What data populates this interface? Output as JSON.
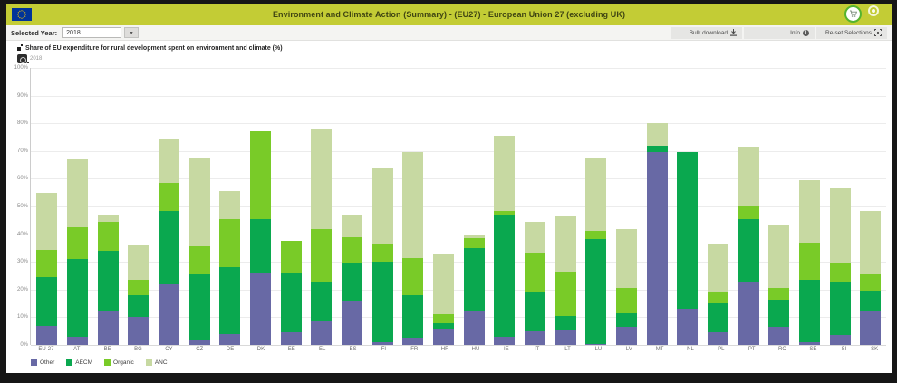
{
  "header": {
    "title": "Environment and Climate Action (Summary) - (EU27) - European Union 27 (excluding UK)",
    "accent_color": "#c3cc35"
  },
  "toolbar": {
    "selected_year_label": "Selected Year:",
    "selected_year_value": "2018",
    "buttons": [
      {
        "label": "Bulk download",
        "icon": "download-icon"
      },
      {
        "label": "Info",
        "icon": "info-icon"
      },
      {
        "label": "Re-set Selections",
        "icon": "reset-selection-icon"
      }
    ]
  },
  "chart": {
    "title": "Share of EU expenditure for rural development spent on environment and climate (%)",
    "snapshot_year": "2018"
  },
  "chart_data": {
    "type": "bar",
    "stacked": true,
    "title": "Share of EU expenditure for rural development spent on environment and climate (%)",
    "xlabel": "",
    "ylabel": "",
    "ylim": [
      0,
      100
    ],
    "ytick_step": 10,
    "ytick_suffix": "%",
    "grid": true,
    "legend_position": "bottom",
    "categories": [
      "EU-27",
      "AT",
      "BE",
      "BG",
      "CY",
      "CZ",
      "DE",
      "DK",
      "EE",
      "EL",
      "ES",
      "FI",
      "FR",
      "HR",
      "HU",
      "IE",
      "IT",
      "LT",
      "LU",
      "LV",
      "MT",
      "NL",
      "PL",
      "PT",
      "RO",
      "SE",
      "SI",
      "SK"
    ],
    "series": [
      {
        "name": "Other",
        "color": "#6869a5",
        "values": [
          7,
          3,
          12.5,
          10,
          22,
          2,
          4,
          26,
          4.5,
          9,
          16,
          1,
          2.5,
          6,
          12,
          3,
          5,
          5.5,
          0.3,
          6.5,
          69.5,
          13,
          4.5,
          23,
          6.5,
          1,
          3.5,
          12.5
        ]
      },
      {
        "name": "AECM",
        "color": "#0aa84f",
        "values": [
          17.5,
          28,
          21.5,
          8,
          26.5,
          23.5,
          24,
          19.5,
          21.5,
          13.5,
          13.5,
          29,
          15.5,
          2,
          23,
          44,
          14,
          5,
          38,
          5,
          2.5,
          56.5,
          10.5,
          22.5,
          10,
          22.5,
          19.5,
          7
        ]
      },
      {
        "name": "Organic",
        "color": "#79cb28",
        "values": [
          10,
          11.5,
          10.5,
          5.5,
          10,
          10,
          17.5,
          31.5,
          11.5,
          19.5,
          9.5,
          6.5,
          13.5,
          3,
          3.5,
          1.5,
          14.5,
          16,
          3,
          9,
          0,
          0,
          4,
          4.5,
          4,
          13.5,
          6.5,
          6
        ]
      },
      {
        "name": "ANC",
        "color": "#c7d9a2",
        "values": [
          20.5,
          24.5,
          2.5,
          12.5,
          16,
          32,
          10,
          0,
          0,
          36,
          8,
          27.5,
          38,
          22,
          1,
          27,
          11,
          20,
          26,
          21.5,
          8,
          0,
          17.5,
          21.5,
          23,
          22.5,
          27,
          23
        ]
      }
    ]
  }
}
